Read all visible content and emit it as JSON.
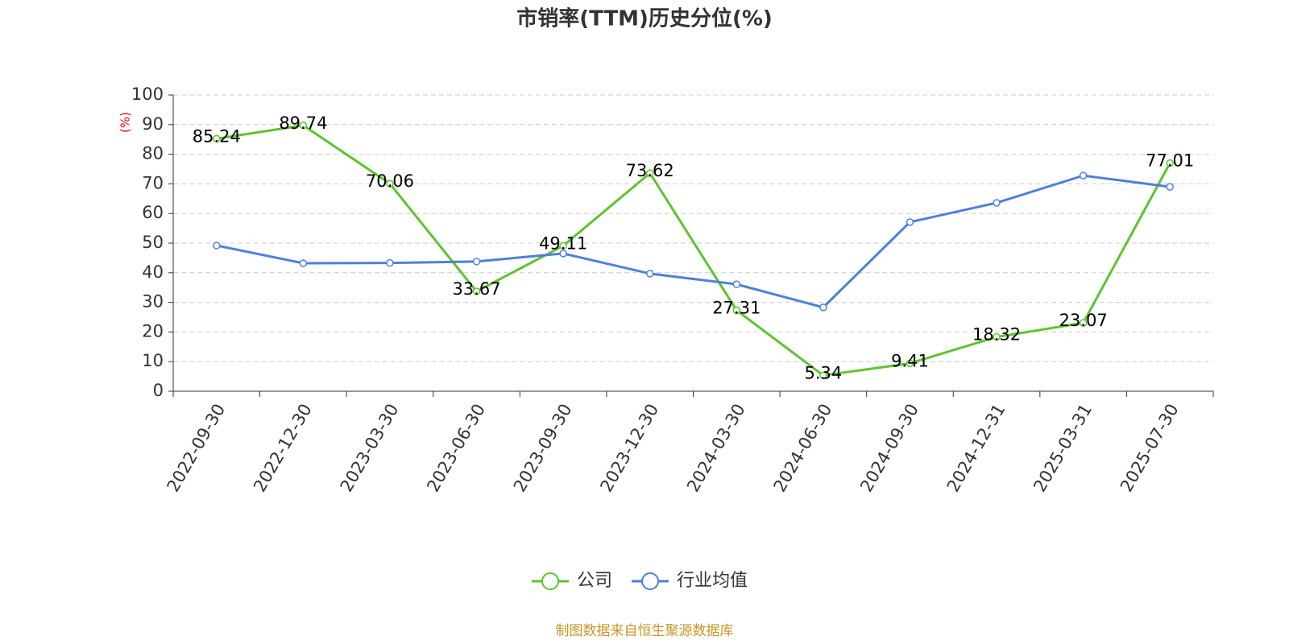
{
  "chart_data": {
    "type": "line",
    "title": "市销率(TTM)历史分位(%)",
    "y_label": "(%)",
    "source": "制图数据来自恒生聚源数据库",
    "categories": [
      "2022-09-30",
      "2022-12-30",
      "2023-03-30",
      "2023-06-30",
      "2023-09-30",
      "2023-12-30",
      "2024-03-30",
      "2024-06-30",
      "2024-09-30",
      "2024-12-31",
      "2025-03-31",
      "2025-07-30"
    ],
    "series": [
      {
        "name": "公司",
        "color": "#5cc52d",
        "values": [
          85.24,
          89.74,
          70.06,
          33.67,
          49.11,
          73.62,
          27.31,
          5.34,
          9.41,
          18.32,
          23.07,
          77.01
        ],
        "show_labels": true
      },
      {
        "name": "行业均值",
        "color": "#4d80dd",
        "values": [
          49.2,
          43.2,
          43.3,
          43.8,
          46.5,
          39.7,
          36.1,
          28.3,
          57.1,
          63.6,
          72.8,
          69.0
        ],
        "show_labels": false
      }
    ],
    "ylim": [
      0,
      100
    ],
    "yticks": [
      0,
      10,
      20,
      30,
      40,
      50,
      60,
      70,
      80,
      90,
      100
    ],
    "grid": true
  }
}
